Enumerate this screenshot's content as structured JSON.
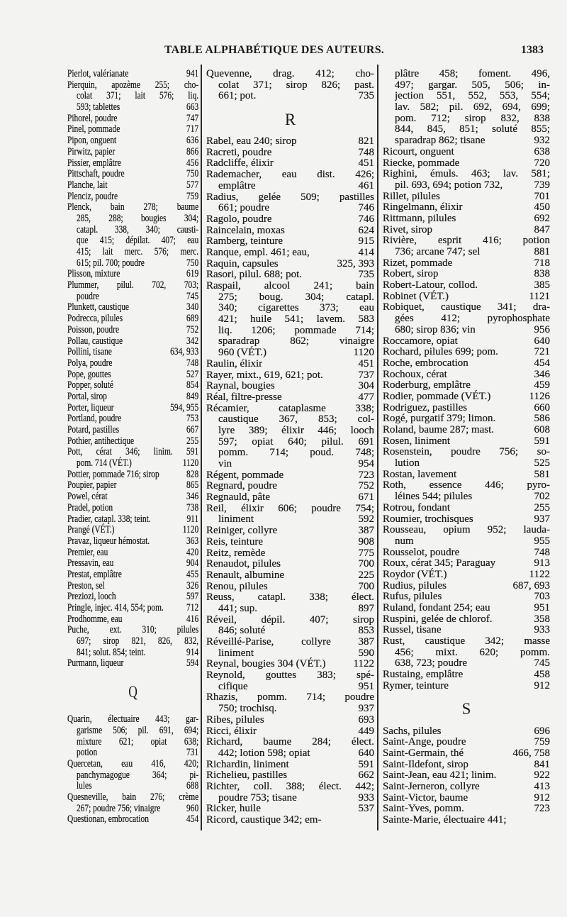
{
  "header": {
    "title": "TABLE ALPHABÉTIQUE DES AUTEURS.",
    "page_number": "1383"
  },
  "columns": [
    {
      "items": [
        {
          "lines": [
            "Pierlot, valérianate"
          ],
          "ref": "941"
        },
        {
          "lines": [
            "Pierquin, apozème 255; cho-",
            "colat 371; lait 576; liq.",
            "593; tablettes"
          ],
          "ref": "663"
        },
        {
          "lines": [
            "Pihorel, poudre"
          ],
          "ref": "747"
        },
        {
          "lines": [
            "Pinel, pommade"
          ],
          "ref": "717"
        },
        {
          "lines": [
            "Pipon, onguent"
          ],
          "ref": "636"
        },
        {
          "lines": [
            "Pirwitz, papier"
          ],
          "ref": "866"
        },
        {
          "lines": [
            "Pissier, emplâtre"
          ],
          "ref": "456"
        },
        {
          "lines": [
            "Pittschaft, poudre"
          ],
          "ref": "750"
        },
        {
          "lines": [
            "Planche, lait"
          ],
          "ref": "577"
        },
        {
          "lines": [
            "Plenciz, poudre"
          ],
          "ref": "759"
        },
        {
          "lines": [
            "Plenck, bain 278; baume",
            "285, 288; bougies 304;",
            "catapl. 338, 340; causti-",
            "que 415; dépilat. 407; eau",
            "415; lait merc. 576; merc.",
            "615; pil. 700; poudre"
          ],
          "ref": "750"
        },
        {
          "lines": [
            "Plisson, mixture"
          ],
          "ref": "619"
        },
        {
          "lines": [
            "Plummer, pilul. 702, 703;",
            "poudre"
          ],
          "ref": "745"
        },
        {
          "lines": [
            "Plunkett, caustique"
          ],
          "ref": "340"
        },
        {
          "lines": [
            "Podrecca, pilules"
          ],
          "ref": "689"
        },
        {
          "lines": [
            "Poisson, poudre"
          ],
          "ref": "752"
        },
        {
          "lines": [
            "Pollau, caustique"
          ],
          "ref": "342"
        },
        {
          "lines": [
            "Pollini, tisane"
          ],
          "ref": "634, 933"
        },
        {
          "lines": [
            "Polya, poudre"
          ],
          "ref": "748"
        },
        {
          "lines": [
            "Pope, gouttes"
          ],
          "ref": "527"
        },
        {
          "lines": [
            "Popper, soluté"
          ],
          "ref": "854"
        },
        {
          "lines": [
            "Portal, sirop"
          ],
          "ref": "849"
        },
        {
          "lines": [
            "Porter, liqueur"
          ],
          "ref": "594, 955"
        },
        {
          "lines": [
            "Portland, poudre"
          ],
          "ref": "753"
        },
        {
          "lines": [
            "Potard, pastilles"
          ],
          "ref": "667"
        },
        {
          "lines": [
            "Pothier, antihectique"
          ],
          "ref": "255"
        },
        {
          "lines": [
            "Pott, cérat 346; linim. 591",
            "pom. 714 (VÉT.)"
          ],
          "ref": "1120"
        },
        {
          "lines": [
            "Pottier, pommade 716; sirop"
          ],
          "ref": "828"
        },
        {
          "lines": [
            "Poupier, papier"
          ],
          "ref": "865"
        },
        {
          "lines": [
            "Powel, cérat"
          ],
          "ref": "346"
        },
        {
          "lines": [
            "Pradel, potion"
          ],
          "ref": "738"
        },
        {
          "lines": [
            "Pradier, catapl. 338; teint."
          ],
          "ref": "911"
        },
        {
          "lines": [
            "Prangé (VÉT.)"
          ],
          "ref": "1120"
        },
        {
          "lines": [
            "Pravaz, liqueur hémostat."
          ],
          "ref": "363"
        },
        {
          "lines": [
            "Premier, eau"
          ],
          "ref": "420"
        },
        {
          "lines": [
            "Pressavin, eau"
          ],
          "ref": "904"
        },
        {
          "lines": [
            "Prestat, emplâtre"
          ],
          "ref": "455"
        },
        {
          "lines": [
            "Preston, sel"
          ],
          "ref": "326"
        },
        {
          "lines": [
            "Preziozi, looch"
          ],
          "ref": "597"
        },
        {
          "lines": [
            "Pringle, injec. 414, 554; pom."
          ],
          "ref": "712"
        },
        {
          "lines": [
            "Prodhomme, eau"
          ],
          "ref": "416"
        },
        {
          "lines": [
            "Puche, ext. 310; pilules",
            "697; sirop 821, 826, 832,",
            "841; solut. 854; teint."
          ],
          "ref": "914"
        },
        {
          "lines": [
            "Purmann, liqueur"
          ],
          "ref": "594"
        },
        {
          "heading": "Q"
        },
        {
          "lines": [
            "Quarin, électuaire 443; gar-",
            "garisme 506; pil. 691, 694;",
            "mixture 621; opiat 638;",
            "potion"
          ],
          "ref": "731"
        },
        {
          "lines": [
            "Quercetan, eau 416, 420;",
            "panchymagogue 364; pi-",
            "lules"
          ],
          "ref": "688"
        },
        {
          "lines": [
            "Quesneville, bain 276; crème",
            "267; poudre 756; vinaigre"
          ],
          "ref": "960"
        },
        {
          "lines": [
            "Questionan, embrocation"
          ],
          "ref": "454"
        }
      ]
    },
    {
      "items": [
        {
          "lines": [
            "Quevenne, drag. 412; cho-",
            "colat 371; sirop 826; past.",
            "661; pot."
          ],
          "ref": "735"
        },
        {
          "heading": "R"
        },
        {
          "lines": [
            "Rabel, eau 240; sirop"
          ],
          "ref": "821"
        },
        {
          "lines": [
            "Racreti, poudre"
          ],
          "ref": "748"
        },
        {
          "lines": [
            "Radcliffe, élixir"
          ],
          "ref": "451"
        },
        {
          "lines": [
            "Rademacher, eau dist. 426;",
            "emplâtre"
          ],
          "ref": "461"
        },
        {
          "lines": [
            "Radius, gelée 509; pastilles",
            "661; poudre"
          ],
          "ref": "746"
        },
        {
          "lines": [
            "Ragolo, poudre"
          ],
          "ref": "746"
        },
        {
          "lines": [
            "Raincelain, moxas"
          ],
          "ref": "624"
        },
        {
          "lines": [
            "Ramberg, teinture"
          ],
          "ref": "915"
        },
        {
          "lines": [
            "Ranque, empl. 461; eau,"
          ],
          "ref": "414"
        },
        {
          "lines": [
            "Raquin, capsules"
          ],
          "ref": "325, 393"
        },
        {
          "lines": [
            "Rasori, pilul. 688; pot."
          ],
          "ref": "735"
        },
        {
          "lines": [
            "Raspail, alcool 241; bain",
            "275; boug. 304; catapl.",
            "340; cigarettes 373; eau",
            "421; huile 541; lavem. 583",
            "liq. 1206; pommade 714;",
            "sparadrap 862; vinaigre",
            "960 (VÉT.)"
          ],
          "ref": "1120"
        },
        {
          "lines": [
            "Raulin, élixir"
          ],
          "ref": "451"
        },
        {
          "lines": [
            "Rayer, mixt., 619, 621; pot."
          ],
          "ref": "737"
        },
        {
          "lines": [
            "Raynal, bougies"
          ],
          "ref": "304"
        },
        {
          "lines": [
            "Réal, filtre-presse"
          ],
          "ref": "477"
        },
        {
          "lines": [
            "Récamier, cataplasme 338;",
            "caustique 367, 853; col-",
            "lyre 389; élixir 446; looch",
            "597; opiat 640; pilul. 691",
            "pomm. 714; poud. 748;",
            "vin"
          ],
          "ref": "954"
        },
        {
          "lines": [
            "Régent, pommade"
          ],
          "ref": "723"
        },
        {
          "lines": [
            "Regnard, poudre"
          ],
          "ref": "752"
        },
        {
          "lines": [
            "Regnauld, pâte"
          ],
          "ref": "671"
        },
        {
          "lines": [
            "Reil, élixir 606; poudre 754;",
            "liniment"
          ],
          "ref": "592"
        },
        {
          "lines": [
            "Reiniger, collyre"
          ],
          "ref": "387"
        },
        {
          "lines": [
            "Reis, teinture"
          ],
          "ref": "908"
        },
        {
          "lines": [
            "Reitz, remède"
          ],
          "ref": "775"
        },
        {
          "lines": [
            "Renaudot, pilules"
          ],
          "ref": "700"
        },
        {
          "lines": [
            "Renault, albumine"
          ],
          "ref": "225"
        },
        {
          "lines": [
            "Renou, pilules"
          ],
          "ref": "700"
        },
        {
          "lines": [
            "Reuss, catapl. 338; élect.",
            "441; sup."
          ],
          "ref": "897"
        },
        {
          "lines": [
            "Réveil, dépil. 407; sirop",
            "846; soluté"
          ],
          "ref": "853"
        },
        {
          "lines": [
            "Réveillé-Parise, collyre 387",
            "liniment"
          ],
          "ref": "590"
        },
        {
          "lines": [
            "Reynal, bougies 304 (VÉT.)"
          ],
          "ref": "1122"
        },
        {
          "lines": [
            "Reynold, gouttes 383; spé-",
            "cifique"
          ],
          "ref": "951"
        },
        {
          "lines": [
            "Rhazis, pomm. 714; poudre",
            "750; trochisq."
          ],
          "ref": "937"
        },
        {
          "lines": [
            "Ribes, pilules"
          ],
          "ref": "693"
        },
        {
          "lines": [
            "Ricci, élixir"
          ],
          "ref": "449"
        },
        {
          "lines": [
            "Richard, baume 284; élect.",
            "442; lotion 598; opiat"
          ],
          "ref": "640"
        },
        {
          "lines": [
            "Richardin, liniment"
          ],
          "ref": "591"
        },
        {
          "lines": [
            "Richelieu, pastilles"
          ],
          "ref": "662"
        },
        {
          "lines": [
            "Richter, coll. 388; élect. 442;",
            "poudre 753; tisane"
          ],
          "ref": "933"
        },
        {
          "lines": [
            "Ricker, huile"
          ],
          "ref": "537"
        },
        {
          "lines": [
            "Ricord, caustique 342; em-"
          ],
          "ref": ""
        }
      ]
    },
    {
      "items": [
        {
          "continued": true,
          "lines": [
            "plâtre 458; foment. 496,",
            "497; gargar. 505, 506; in-",
            "jection 551, 552, 553, 554;",
            "lav. 582; pil. 692, 694, 699;",
            "pom. 712; sirop 832, 838",
            "844, 845, 851; soluté 855;",
            "sparadrap 862; tisane"
          ],
          "ref": "932"
        },
        {
          "lines": [
            "Ricourt, onguent"
          ],
          "ref": "638"
        },
        {
          "lines": [
            "Riecke, pommade"
          ],
          "ref": "720"
        },
        {
          "lines": [
            "Righini, émuls. 463; lav. 581;",
            "pil. 693, 694; potion 732,"
          ],
          "ref": "739"
        },
        {
          "lines": [
            "Rillet, pilules"
          ],
          "ref": "701"
        },
        {
          "lines": [
            "Ringelmann, élixir"
          ],
          "ref": "450"
        },
        {
          "lines": [
            "Rittmann, pilules"
          ],
          "ref": "692"
        },
        {
          "lines": [
            "Rivet, sirop"
          ],
          "ref": "847"
        },
        {
          "lines": [
            "Rivière, esprit 416; potion",
            "736; arcane 747; sel"
          ],
          "ref": "881"
        },
        {
          "lines": [
            "Rizet, pommade"
          ],
          "ref": "718"
        },
        {
          "lines": [
            "Robert, sirop"
          ],
          "ref": "838"
        },
        {
          "lines": [
            "Robert-Latour, collod."
          ],
          "ref": "385"
        },
        {
          "lines": [
            "Robinet (VÉT.)"
          ],
          "ref": "1121"
        },
        {
          "lines": [
            "Robiquet, caustique 341; dra-",
            "gées 412; pyrophosphate",
            "680; sirop 836; vin"
          ],
          "ref": "956"
        },
        {
          "lines": [
            "Roccamore, opiat"
          ],
          "ref": "640"
        },
        {
          "lines": [
            "Rochard, pilules 699; pom."
          ],
          "ref": "721"
        },
        {
          "lines": [
            "Roche, embrocation"
          ],
          "ref": "454"
        },
        {
          "lines": [
            "Rochoux, cérat"
          ],
          "ref": "346"
        },
        {
          "lines": [
            "Roderburg, emplâtre"
          ],
          "ref": "459"
        },
        {
          "lines": [
            "Rodier, pommade (VÉT.)"
          ],
          "ref": "1126"
        },
        {
          "lines": [
            "Rodriguez, pastilles"
          ],
          "ref": "660"
        },
        {
          "lines": [
            "Rogé, purgatif 379; limon."
          ],
          "ref": "586"
        },
        {
          "lines": [
            "Roland, baume 287; mast."
          ],
          "ref": "608"
        },
        {
          "lines": [
            "Rosen, liniment"
          ],
          "ref": "591"
        },
        {
          "lines": [
            "Rosenstein, poudre 756; so-",
            "lution"
          ],
          "ref": "525"
        },
        {
          "lines": [
            "Rostan, lavement"
          ],
          "ref": "581"
        },
        {
          "lines": [
            "Roth, essence 446; pyro-",
            "léines 544; pilules"
          ],
          "ref": "702"
        },
        {
          "lines": [
            "Rotrou, fondant"
          ],
          "ref": "255"
        },
        {
          "lines": [
            "Roumier, trochisques"
          ],
          "ref": "937"
        },
        {
          "lines": [
            "Rousseau, opium 952; lauda-",
            "num"
          ],
          "ref": "955"
        },
        {
          "lines": [
            "Rousselot, poudre"
          ],
          "ref": "748"
        },
        {
          "lines": [
            "Roux, cérat 345; Paraguay"
          ],
          "ref": "913"
        },
        {
          "lines": [
            "Roydor (VÉT.)"
          ],
          "ref": "1122"
        },
        {
          "lines": [
            "Rudius, pilules"
          ],
          "ref": "687, 693"
        },
        {
          "lines": [
            "Rufus, pilules"
          ],
          "ref": "703"
        },
        {
          "lines": [
            "Ruland, fondant 254; eau"
          ],
          "ref": "951"
        },
        {
          "lines": [
            "Ruspini, gelée de chlorof."
          ],
          "ref": "358"
        },
        {
          "lines": [
            "Russel, tisane"
          ],
          "ref": "933"
        },
        {
          "lines": [
            "Rust, caustique 342; masse",
            "456; mixt. 620; pomm.",
            "638, 723; poudre"
          ],
          "ref": "745"
        },
        {
          "lines": [
            "Rustaing, emplâtre"
          ],
          "ref": "458"
        },
        {
          "lines": [
            "Rymer, teinture"
          ],
          "ref": "912"
        },
        {
          "heading": "S"
        },
        {
          "lines": [
            "Sachs, pilules"
          ],
          "ref": "696"
        },
        {
          "lines": [
            "Saint-Ange, poudre"
          ],
          "ref": "759"
        },
        {
          "lines": [
            "Saint-Germain, thé"
          ],
          "ref": "466, 758"
        },
        {
          "lines": [
            "Saint-Ildefont, sirop"
          ],
          "ref": "841"
        },
        {
          "lines": [
            "Saint-Jean, eau 421; linim."
          ],
          "ref": "922"
        },
        {
          "lines": [
            "Saint-Jerneron, collyre"
          ],
          "ref": "413"
        },
        {
          "lines": [
            "Saint-Victor, baume"
          ],
          "ref": "912"
        },
        {
          "lines": [
            "Saint-Yves, pomm."
          ],
          "ref": "723"
        },
        {
          "lines": [
            "Sainte-Marie, électuaire 441;"
          ],
          "ref": ""
        }
      ]
    }
  ]
}
